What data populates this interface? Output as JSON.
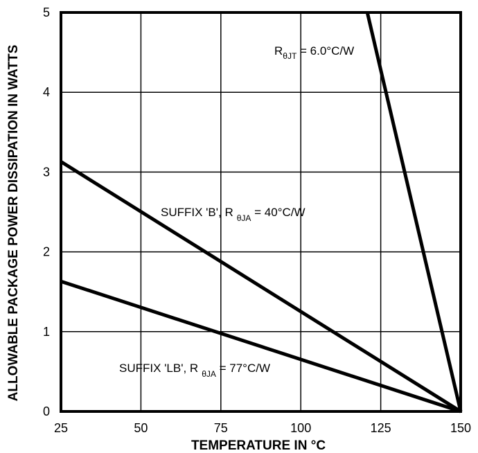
{
  "chart_data": {
    "type": "line",
    "xlabel": "TEMPERATURE IN °C",
    "ylabel": "ALLOWABLE PACKAGE POWER DISSIPATION IN WATTS",
    "xlim": [
      25,
      150
    ],
    "ylim": [
      0,
      5
    ],
    "x_ticks": [
      "25",
      "50",
      "75",
      "100",
      "125",
      "150"
    ],
    "y_ticks": [
      "0",
      "1",
      "2",
      "3",
      "4",
      "5"
    ],
    "grid": true,
    "series": [
      {
        "x": [
          120.8,
          150
        ],
        "y": [
          5.0,
          0
        ]
      },
      {
        "x": [
          25,
          150
        ],
        "y": [
          3.13,
          0
        ]
      },
      {
        "x": [
          25,
          150
        ],
        "y": [
          1.63,
          0
        ]
      }
    ],
    "annotations": [
      {
        "text": "R",
        "sub": "θJT",
        "rest": " = 6.0°C/W"
      },
      {
        "text": "SUFFIX 'B', R",
        "sub": "θJA",
        "rest": " = 40°C/W"
      },
      {
        "text": "SUFFIX 'LB', R",
        "sub": "θJA",
        "rest": " = 77°C/W"
      }
    ],
    "colors": {
      "line": "#000000",
      "grid": "#000000",
      "background": "#ffffff"
    }
  }
}
